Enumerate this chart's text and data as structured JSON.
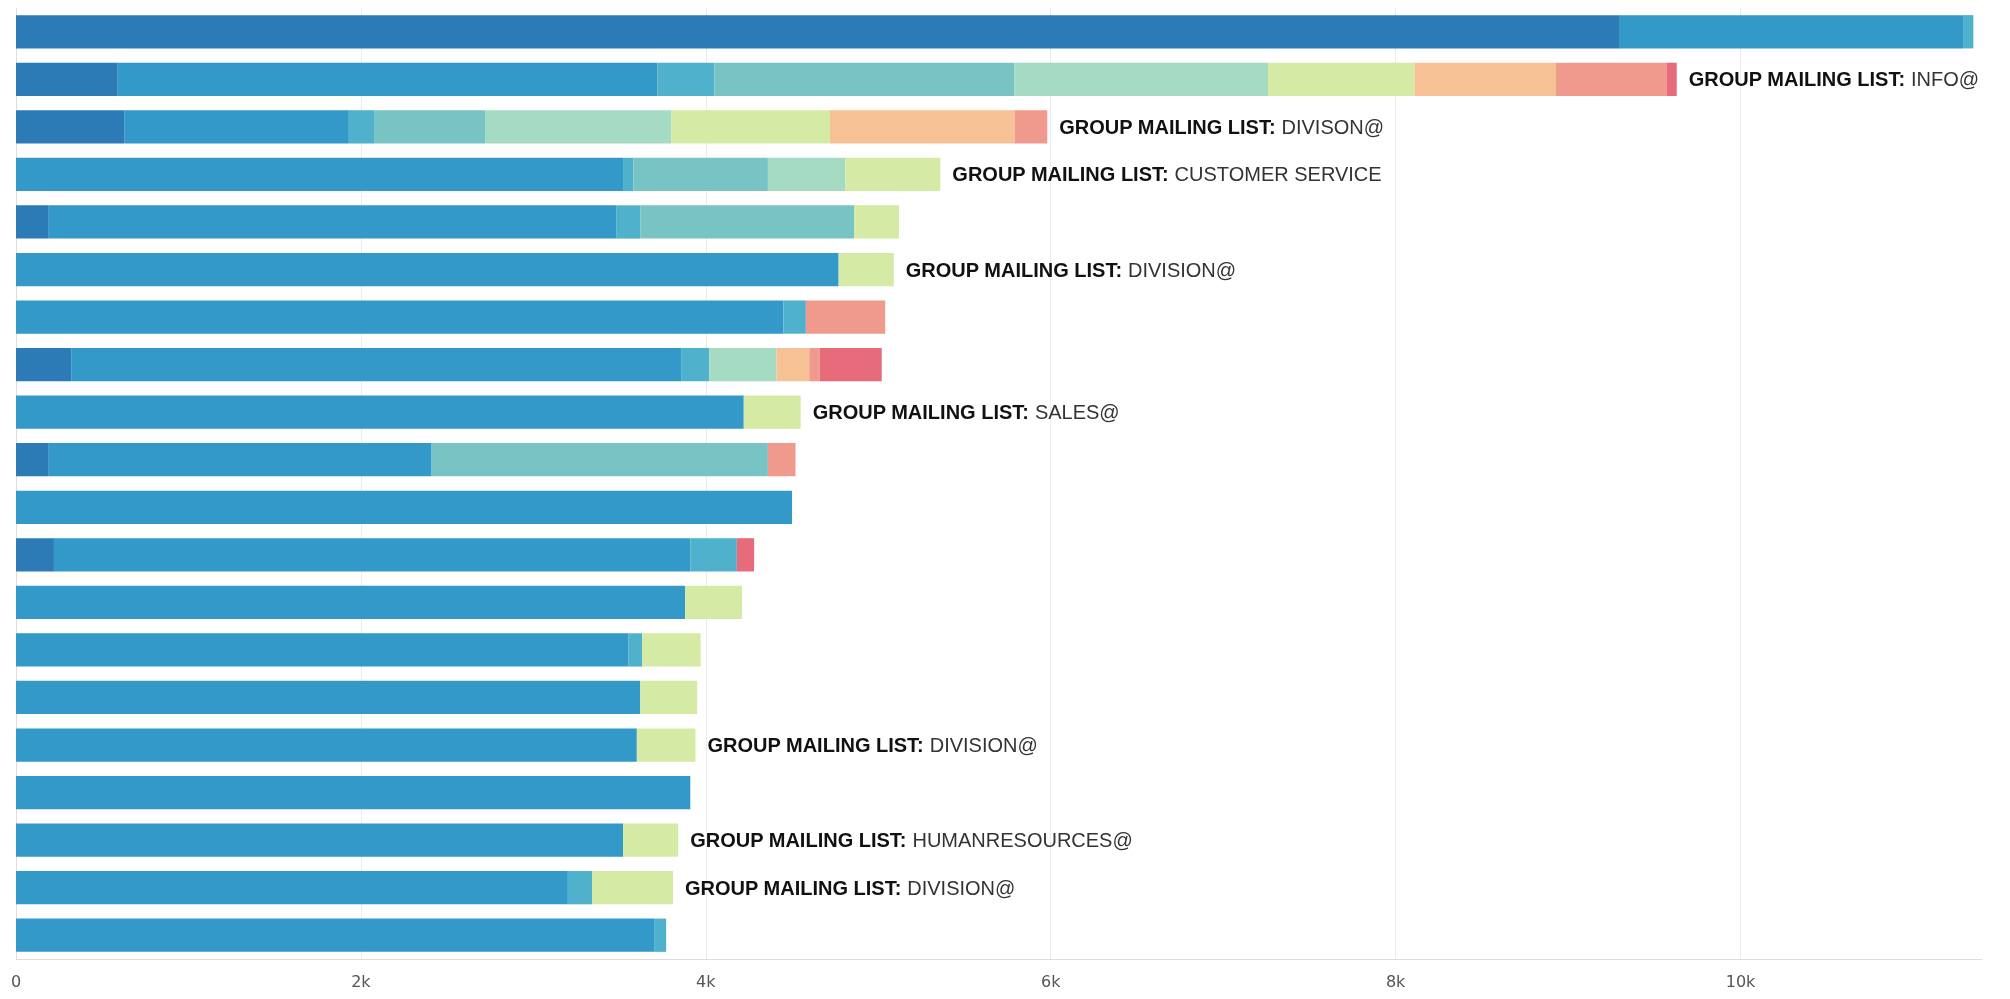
{
  "chart_data": {
    "type": "bar",
    "orientation": "horizontal",
    "stacked": true,
    "grid": "x",
    "categories": [
      null,
      null,
      null,
      null,
      null,
      null,
      null,
      null,
      null,
      null,
      null,
      null,
      null,
      null,
      null,
      null,
      null,
      null,
      null,
      null
    ],
    "xlim": [
      0,
      11400
    ],
    "xticks": [
      0,
      {
        "value": 2000,
        "label": "2k"
      },
      {
        "value": 4000,
        "label": "4k"
      },
      {
        "value": 6000,
        "label": "6k"
      },
      {
        "value": 8000,
        "label": "8k"
      },
      {
        "value": 10000,
        "label": "10k"
      }
    ],
    "series": [
      {
        "color": "#2c7bb6",
        "values": [
          9300,
          590,
          630,
          0,
          190,
          0,
          0,
          320,
          0,
          190,
          0,
          220,
          0,
          0,
          0,
          0,
          0,
          0,
          0,
          0
        ]
      },
      {
        "color": "#3399c9",
        "values": [
          1990,
          3130,
          1300,
          3520,
          3290,
          4770,
          4450,
          3540,
          4220,
          2220,
          4500,
          3690,
          3880,
          3550,
          3620,
          3600,
          3910,
          3520,
          3200,
          3700
        ]
      },
      {
        "color": "#4fb1cc",
        "values": [
          60,
          330,
          150,
          60,
          140,
          0,
          130,
          160,
          0,
          0,
          0,
          270,
          0,
          80,
          0,
          0,
          0,
          0,
          140,
          70
        ]
      },
      {
        "color": "#78c3c3",
        "values": [
          0,
          1740,
          640,
          780,
          1240,
          0,
          0,
          0,
          0,
          1950,
          0,
          0,
          0,
          0,
          0,
          0,
          0,
          0,
          0,
          0
        ]
      },
      {
        "color": "#a4dbc2",
        "values": [
          0,
          1470,
          1080,
          450,
          0,
          0,
          0,
          390,
          0,
          0,
          0,
          0,
          0,
          0,
          0,
          0,
          0,
          0,
          0,
          0
        ]
      },
      {
        "color": "#d5eba5",
        "values": [
          0,
          850,
          920,
          550,
          260,
          320,
          0,
          0,
          330,
          0,
          0,
          0,
          330,
          340,
          330,
          340,
          0,
          320,
          470,
          0
        ]
      },
      {
        "color": "#f7c196",
        "values": [
          0,
          820,
          1070,
          0,
          0,
          0,
          0,
          190,
          0,
          0,
          0,
          0,
          0,
          0,
          0,
          0,
          0,
          0,
          0,
          0
        ]
      },
      {
        "color": "#ef9a8d",
        "values": [
          0,
          640,
          190,
          0,
          0,
          0,
          460,
          60,
          0,
          160,
          0,
          0,
          0,
          0,
          0,
          0,
          0,
          0,
          0,
          0
        ]
      },
      {
        "color": "#e76b7b",
        "values": [
          0,
          60,
          0,
          0,
          0,
          0,
          0,
          360,
          0,
          0,
          0,
          100,
          0,
          0,
          0,
          0,
          0,
          0,
          0,
          0
        ],
        "value_labels": [
          null,
          "GROUP MAILING LIST: INFO@",
          "GROUP MAILING LIST: DIVISON@",
          "GROUP MAILING LIST: CUSTOMER SERVICE",
          null,
          "GROUP MAILING LIST: DIVISION@",
          null,
          null,
          "GROUP MAILING LIST: SALES@",
          null,
          null,
          null,
          null,
          null,
          null,
          "GROUP MAILING LIST: DIVISION@",
          null,
          "GROUP MAILING LIST: HUMANRESOURCES@",
          "GROUP MAILING LIST: DIVISION@",
          null
        ]
      }
    ]
  }
}
